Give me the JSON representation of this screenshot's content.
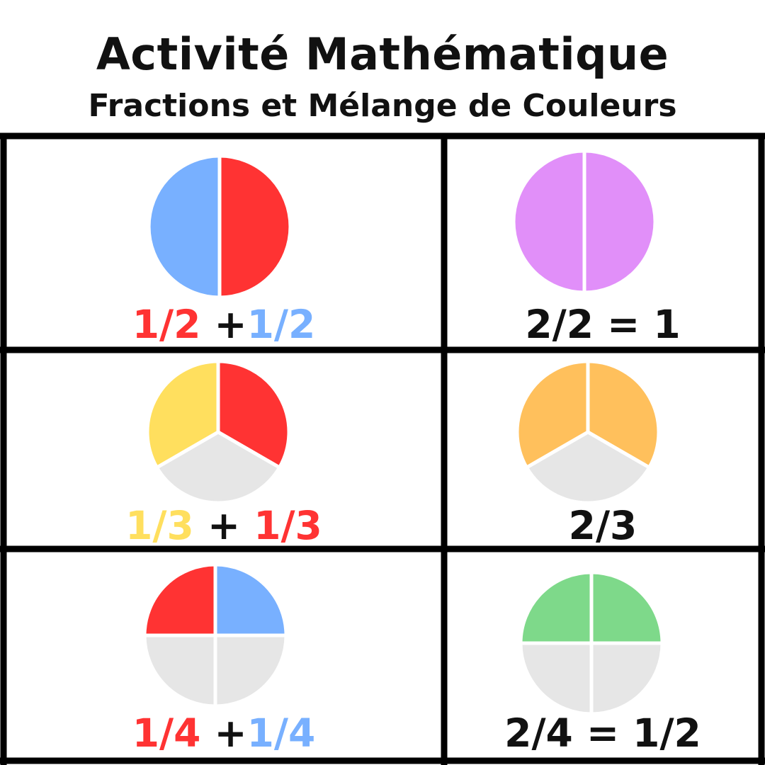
{
  "header": {
    "title": "Activité Mathématique",
    "subtitle": "Fractions et Mélange de Couleurs"
  },
  "colors": {
    "red": "#ff3333",
    "blue": "#78b0ff",
    "purple": "#e18ff9",
    "yellow": "#ffdf5e",
    "orange": "#ffc05c",
    "green": "#7ed98a",
    "empty": "#e6e6e6",
    "text": "#111111"
  },
  "rows": [
    {
      "left": {
        "slices": [
          "red",
          "blue"
        ],
        "parts": [
          {
            "text": "1/2",
            "color": "red"
          },
          {
            "text": " +",
            "color": "text"
          },
          {
            "text": "1/2",
            "color": "blue"
          }
        ]
      },
      "right": {
        "slices": [
          "purple",
          "purple"
        ],
        "parts": [
          {
            "text": "2/2 = 1",
            "color": "text"
          }
        ]
      }
    },
    {
      "left": {
        "slices": [
          "red",
          "empty",
          "yellow"
        ],
        "parts": [
          {
            "text": "1/3",
            "color": "yellow"
          },
          {
            "text": " + ",
            "color": "text"
          },
          {
            "text": "1/3",
            "color": "red"
          }
        ]
      },
      "right": {
        "slices": [
          "orange",
          "empty",
          "orange"
        ],
        "parts": [
          {
            "text": "2/3",
            "color": "text"
          }
        ]
      }
    },
    {
      "left": {
        "slices": [
          "blue",
          "empty",
          "empty",
          "red"
        ],
        "parts": [
          {
            "text": "1/4",
            "color": "red"
          },
          {
            "text": " +",
            "color": "text"
          },
          {
            "text": "1/4",
            "color": "blue"
          }
        ]
      },
      "right": {
        "slices": [
          "green",
          "empty",
          "empty",
          "green"
        ],
        "parts": [
          {
            "text": "2/4 = 1/2",
            "color": "text"
          }
        ]
      }
    }
  ]
}
